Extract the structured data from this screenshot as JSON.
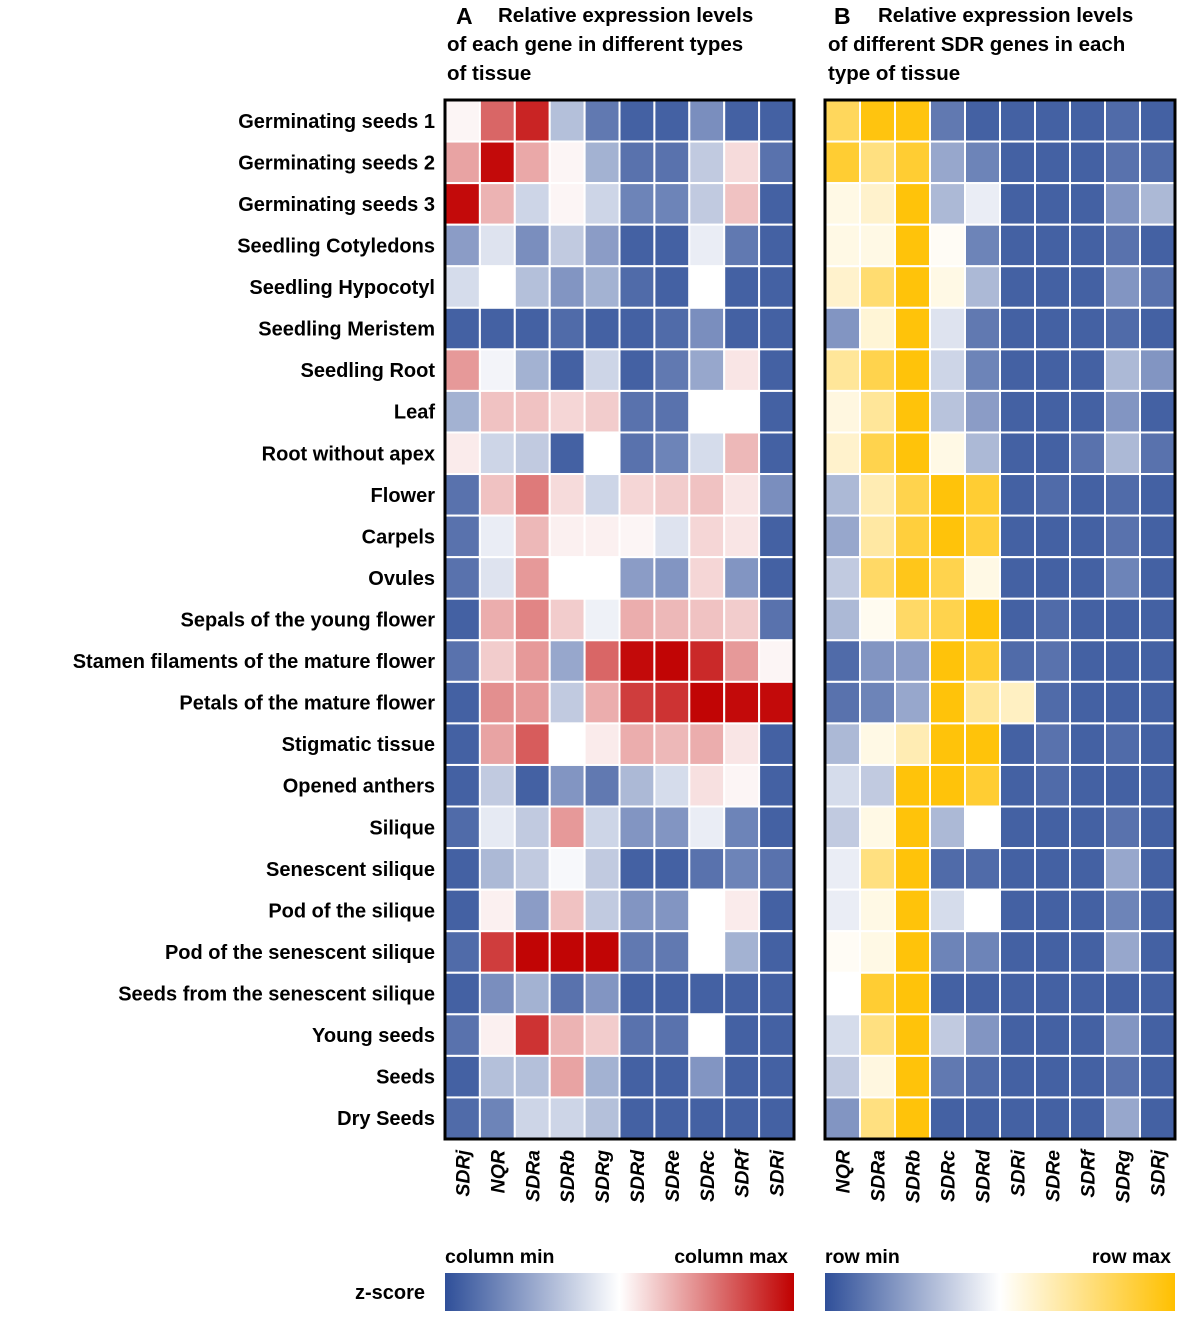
{
  "chart_data": [
    {
      "id": "A",
      "type": "heatmap",
      "panel_letter": "A",
      "title_lines": [
        "Relative expression levels",
        "of each gene in different types",
        "of tissue"
      ],
      "normalization": "column",
      "columns": [
        "SDRj",
        "NQR",
        "SDRa",
        "SDRb",
        "SDRg",
        "SDRd",
        "SDRe",
        "SDRc",
        "SDRf",
        "SDRi"
      ],
      "rows": [
        "Germinating seeds 1",
        "Germinating seeds 2",
        "Germinating seeds 3",
        "Seedling Cotyledons",
        "Seedling Hypocotyl",
        "Seedling Meristem",
        "Seedling Root",
        "Leaf",
        "Root without apex",
        "Flower",
        "Carpels",
        "Ovules",
        "Sepals of the young flower",
        "Stamen filaments of the mature flower",
        "Petals of the mature flower",
        "Stigmatic tissue",
        "Opened anthers",
        "Silique",
        "Senescent silique",
        "Pod of the silique",
        "Pod of the senescent silique",
        "Seeds from the senescent silique",
        "Young seeds",
        "Seeds",
        "Dry Seeds"
      ],
      "values": [
        [
          0.52,
          0.8,
          0.93,
          0.32,
          0.12,
          0.05,
          0.05,
          0.18,
          0.05,
          0.05
        ],
        [
          0.68,
          0.98,
          0.67,
          0.52,
          0.28,
          0.1,
          0.1,
          0.35,
          0.57,
          0.1
        ],
        [
          0.98,
          0.65,
          0.38,
          0.52,
          0.38,
          0.15,
          0.15,
          0.35,
          0.62,
          0.05
        ],
        [
          0.22,
          0.42,
          0.18,
          0.35,
          0.22,
          0.05,
          0.05,
          0.45,
          0.12,
          0.05
        ],
        [
          0.4,
          0.5,
          0.32,
          0.2,
          0.28,
          0.08,
          0.05,
          0.5,
          0.05,
          0.05
        ],
        [
          0.05,
          0.05,
          0.05,
          0.08,
          0.05,
          0.05,
          0.08,
          0.18,
          0.05,
          0.05
        ],
        [
          0.7,
          0.47,
          0.28,
          0.05,
          0.38,
          0.05,
          0.12,
          0.25,
          0.55,
          0.05
        ],
        [
          0.28,
          0.62,
          0.62,
          0.58,
          0.6,
          0.1,
          0.1,
          0.5,
          0.5,
          0.05
        ],
        [
          0.54,
          0.38,
          0.35,
          0.05,
          0.5,
          0.1,
          0.15,
          0.4,
          0.64,
          0.05
        ],
        [
          0.1,
          0.62,
          0.76,
          0.57,
          0.38,
          0.58,
          0.6,
          0.62,
          0.55,
          0.18
        ],
        [
          0.1,
          0.45,
          0.64,
          0.53,
          0.53,
          0.52,
          0.42,
          0.58,
          0.55,
          0.05
        ],
        [
          0.1,
          0.42,
          0.7,
          0.5,
          0.5,
          0.22,
          0.2,
          0.58,
          0.2,
          0.05
        ],
        [
          0.05,
          0.66,
          0.74,
          0.6,
          0.46,
          0.66,
          0.64,
          0.62,
          0.6,
          0.1
        ],
        [
          0.1,
          0.6,
          0.7,
          0.25,
          0.8,
          0.98,
          0.99,
          0.92,
          0.7,
          0.52
        ],
        [
          0.05,
          0.72,
          0.7,
          0.35,
          0.66,
          0.88,
          0.9,
          0.99,
          0.98,
          0.98
        ],
        [
          0.05,
          0.68,
          0.82,
          0.5,
          0.54,
          0.66,
          0.64,
          0.66,
          0.55,
          0.05
        ],
        [
          0.05,
          0.35,
          0.05,
          0.2,
          0.12,
          0.3,
          0.4,
          0.56,
          0.52,
          0.05
        ],
        [
          0.08,
          0.44,
          0.35,
          0.7,
          0.38,
          0.2,
          0.2,
          0.45,
          0.15,
          0.05
        ],
        [
          0.05,
          0.3,
          0.35,
          0.48,
          0.35,
          0.05,
          0.05,
          0.1,
          0.15,
          0.1
        ],
        [
          0.05,
          0.53,
          0.22,
          0.62,
          0.35,
          0.2,
          0.2,
          0.5,
          0.54,
          0.05
        ],
        [
          0.08,
          0.88,
          0.99,
          0.99,
          0.99,
          0.12,
          0.12,
          0.5,
          0.28,
          0.05
        ],
        [
          0.05,
          0.18,
          0.28,
          0.1,
          0.2,
          0.05,
          0.05,
          0.05,
          0.05,
          0.05
        ],
        [
          0.1,
          0.53,
          0.9,
          0.65,
          0.6,
          0.1,
          0.1,
          0.5,
          0.05,
          0.05
        ],
        [
          0.05,
          0.32,
          0.32,
          0.68,
          0.28,
          0.05,
          0.05,
          0.2,
          0.05,
          0.05
        ],
        [
          0.08,
          0.15,
          0.38,
          0.38,
          0.32,
          0.05,
          0.05,
          0.05,
          0.05,
          0.05
        ]
      ],
      "scale": {
        "min_label": "column min",
        "max_label": "column max",
        "colors": [
          "#2f4f99",
          "#ffffff",
          "#c00000"
        ]
      }
    },
    {
      "id": "B",
      "type": "heatmap",
      "panel_letter": "B",
      "title_lines": [
        "Relative expression levels",
        "of different SDR genes in each",
        "type of tissue"
      ],
      "normalization": "row",
      "columns": [
        "NQR",
        "SDRa",
        "SDRb",
        "SDRc",
        "SDRd",
        "SDRi",
        "SDRe",
        "SDRf",
        "SDRg",
        "SDRj"
      ],
      "rows": [
        "Germinating seeds 1",
        "Germinating seeds 2",
        "Germinating seeds 3",
        "Seedling Cotyledons",
        "Seedling Hypocotyl",
        "Seedling Meristem",
        "Seedling Root",
        "Leaf",
        "Root without apex",
        "Flower",
        "Carpels",
        "Ovules",
        "Sepals of the young flower",
        "Stamen filaments of the mature flower",
        "Petals of the mature flower",
        "Stigmatic tissue",
        "Opened anthers",
        "Silique",
        "Senescent silique",
        "Pod of the silique",
        "Pod of the senescent silique",
        "Seeds from the senescent silique",
        "Young seeds",
        "Seeds",
        "Dry Seeds"
      ],
      "values": [
        [
          0.82,
          0.97,
          0.97,
          0.12,
          0.05,
          0.05,
          0.05,
          0.05,
          0.08,
          0.05
        ],
        [
          0.9,
          0.75,
          0.9,
          0.25,
          0.15,
          0.05,
          0.05,
          0.05,
          0.1,
          0.08
        ],
        [
          0.55,
          0.6,
          0.98,
          0.3,
          0.45,
          0.05,
          0.05,
          0.05,
          0.2,
          0.3
        ],
        [
          0.55,
          0.55,
          0.98,
          0.52,
          0.15,
          0.05,
          0.05,
          0.05,
          0.1,
          0.05
        ],
        [
          0.6,
          0.78,
          0.98,
          0.55,
          0.3,
          0.05,
          0.05,
          0.05,
          0.2,
          0.1
        ],
        [
          0.2,
          0.58,
          0.98,
          0.42,
          0.12,
          0.05,
          0.05,
          0.05,
          0.08,
          0.05
        ],
        [
          0.7,
          0.85,
          0.98,
          0.38,
          0.15,
          0.05,
          0.05,
          0.05,
          0.3,
          0.2
        ],
        [
          0.56,
          0.7,
          0.98,
          0.33,
          0.22,
          0.05,
          0.05,
          0.05,
          0.2,
          0.05
        ],
        [
          0.6,
          0.85,
          0.98,
          0.55,
          0.3,
          0.05,
          0.05,
          0.1,
          0.3,
          0.1
        ],
        [
          0.3,
          0.65,
          0.85,
          0.98,
          0.9,
          0.05,
          0.08,
          0.05,
          0.08,
          0.05
        ],
        [
          0.25,
          0.68,
          0.88,
          0.98,
          0.88,
          0.05,
          0.05,
          0.05,
          0.1,
          0.05
        ],
        [
          0.35,
          0.8,
          0.95,
          0.85,
          0.55,
          0.05,
          0.05,
          0.05,
          0.15,
          0.05
        ],
        [
          0.3,
          0.53,
          0.8,
          0.85,
          0.98,
          0.05,
          0.08,
          0.05,
          0.05,
          0.05
        ],
        [
          0.08,
          0.2,
          0.22,
          0.98,
          0.9,
          0.08,
          0.1,
          0.05,
          0.05,
          0.05
        ],
        [
          0.1,
          0.15,
          0.25,
          0.98,
          0.7,
          0.62,
          0.08,
          0.05,
          0.05,
          0.05
        ],
        [
          0.3,
          0.55,
          0.65,
          0.98,
          0.98,
          0.05,
          0.1,
          0.05,
          0.08,
          0.05
        ],
        [
          0.4,
          0.35,
          0.98,
          0.98,
          0.9,
          0.05,
          0.08,
          0.05,
          0.05,
          0.05
        ],
        [
          0.35,
          0.55,
          0.98,
          0.3,
          0.5,
          0.05,
          0.05,
          0.05,
          0.1,
          0.05
        ],
        [
          0.45,
          0.75,
          0.98,
          0.08,
          0.08,
          0.05,
          0.05,
          0.05,
          0.25,
          0.05
        ],
        [
          0.45,
          0.55,
          0.98,
          0.4,
          0.5,
          0.05,
          0.05,
          0.05,
          0.15,
          0.05
        ],
        [
          0.52,
          0.55,
          0.98,
          0.15,
          0.15,
          0.05,
          0.05,
          0.05,
          0.25,
          0.05
        ],
        [
          0.5,
          0.9,
          0.98,
          0.05,
          0.05,
          0.05,
          0.05,
          0.05,
          0.05,
          0.05
        ],
        [
          0.4,
          0.75,
          0.98,
          0.35,
          0.2,
          0.05,
          0.05,
          0.05,
          0.2,
          0.05
        ],
        [
          0.35,
          0.56,
          0.98,
          0.12,
          0.08,
          0.05,
          0.05,
          0.05,
          0.1,
          0.05
        ],
        [
          0.2,
          0.75,
          0.98,
          0.05,
          0.05,
          0.05,
          0.05,
          0.05,
          0.25,
          0.05
        ]
      ],
      "scale": {
        "min_label": "row min",
        "max_label": "row max",
        "colors": [
          "#2f4f99",
          "#ffffff",
          "#ffc000"
        ]
      }
    }
  ],
  "legend": {
    "zscore_label": "z-score"
  }
}
